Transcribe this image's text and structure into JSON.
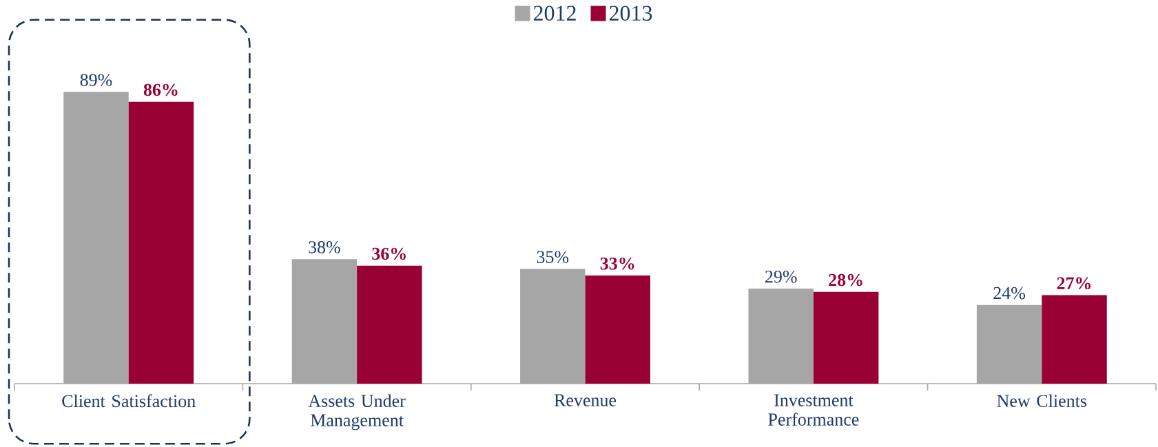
{
  "chart_data": {
    "type": "bar",
    "categories": [
      "Client Satisfaction",
      "Assets Under Management",
      "Revenue",
      "Investment Performance",
      "New Clients"
    ],
    "series": [
      {
        "name": "2012",
        "color": "#a6a6a6",
        "values": [
          89,
          38,
          35,
          29,
          24
        ],
        "value_labels": [
          "89%",
          "38%",
          "35%",
          "29%",
          "24%"
        ]
      },
      {
        "name": "2013",
        "color": "#990033",
        "values": [
          86,
          36,
          33,
          28,
          27
        ],
        "value_labels": [
          "86%",
          "36%",
          "33%",
          "28%",
          "27%"
        ]
      }
    ],
    "legend": "top"
  }
}
